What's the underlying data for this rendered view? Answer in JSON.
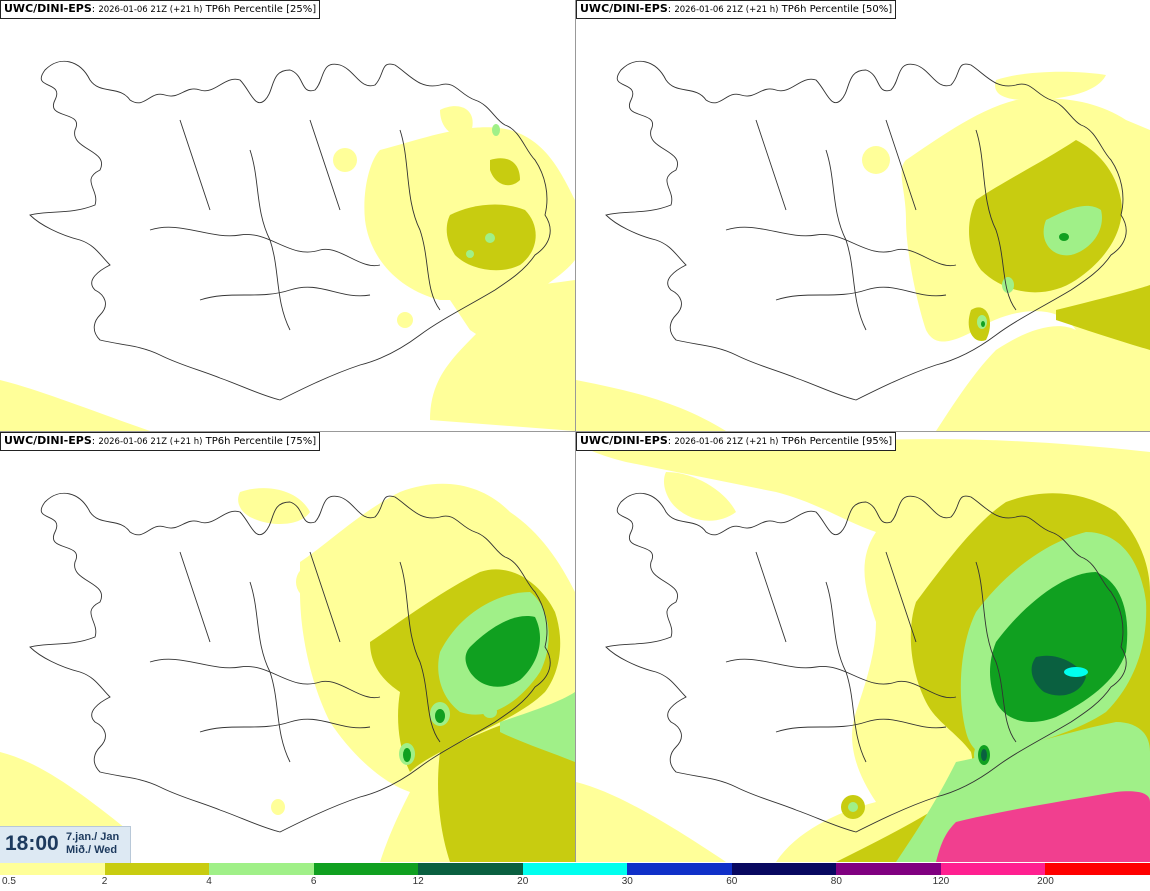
{
  "panels": [
    {
      "model": "UWC/DINI-EPS",
      "run": "2026-01-06 21Z (+21 h)",
      "product": "TP6h Percentile",
      "percentile": "[25%]"
    },
    {
      "model": "UWC/DINI-EPS",
      "run": "2026-01-06 21Z (+21 h)",
      "product": "TP6h Percentile",
      "percentile": "[50%]"
    },
    {
      "model": "UWC/DINI-EPS",
      "run": "2026-01-06 21Z (+21 h)",
      "product": "TP6h Percentile",
      "percentile": "[75%]"
    },
    {
      "model": "UWC/DINI-EPS",
      "run": "2026-01-06 21Z (+21 h)",
      "product": "TP6h Percentile",
      "percentile": "[95%]"
    }
  ],
  "valid_time": {
    "time": "18:00",
    "date_line1": "7.jan./ Jan",
    "date_line2": "Mið./ Wed"
  },
  "legend": {
    "colors": [
      "#ffff99",
      "#c8cc10",
      "#a0f088",
      "#10a020",
      "#0a6040",
      "#00ffee",
      "#1030c8",
      "#080860",
      "#800080",
      "#ff2090",
      "#ff0000"
    ],
    "ticks": [
      "0.5",
      "2",
      "4",
      "6",
      "12",
      "20",
      "30",
      "60",
      "80",
      "120",
      "200"
    ]
  }
}
